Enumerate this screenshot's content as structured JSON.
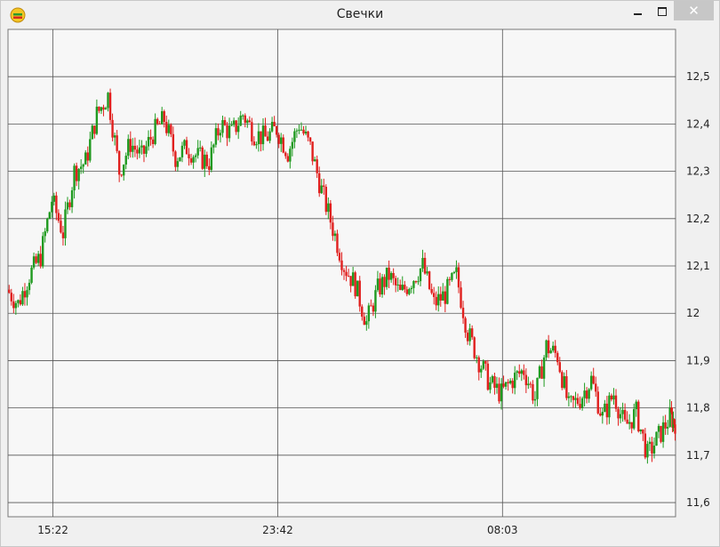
{
  "window": {
    "title": "Свечки",
    "app_icon": "chart-app-icon",
    "controls": {
      "minimize": "minimize-icon",
      "maximize": "maximize-icon",
      "close": "✕"
    }
  },
  "colors": {
    "up": "#1f9a1f",
    "down": "#e0201e",
    "grid": "#555555",
    "plot_bg": "#f7f7f7"
  },
  "chart_data": {
    "type": "candlestick",
    "title": "",
    "xlabel": "",
    "ylabel": "",
    "ylim": [
      11.57,
      12.6
    ],
    "y_ticks": [
      11.6,
      11.7,
      11.8,
      11.9,
      12,
      12.1,
      12.2,
      12.3,
      12.4,
      12.5
    ],
    "y_tick_labels": [
      "11,6",
      "11,7",
      "11,8",
      "11,9",
      "12",
      "12,1",
      "12,2",
      "12,3",
      "12,4",
      "12,5"
    ],
    "x_ticks": [
      15,
      115,
      215
    ],
    "x_tick_labels": [
      "15:22",
      "23:42",
      "08:03"
    ],
    "x_range": [
      -5,
      292
    ],
    "grid": true,
    "y_axis_side": "right",
    "series": [
      {
        "x": [
          -5,
          0,
          5,
          10,
          15,
          20,
          25,
          30,
          35,
          40,
          45,
          50,
          55,
          60,
          65,
          70,
          75,
          80,
          85,
          90,
          95,
          100,
          105,
          110,
          115,
          120,
          125,
          130,
          135,
          140,
          145,
          150,
          155,
          160,
          165,
          170,
          175,
          180,
          185,
          190,
          195,
          200,
          205,
          210,
          215,
          220,
          225,
          230,
          235,
          240,
          245,
          250,
          255,
          260,
          265,
          270,
          275,
          280,
          285,
          290,
          292
        ],
        "close": [
          12.05,
          12.02,
          12.08,
          12.12,
          12.24,
          12.17,
          12.3,
          12.32,
          12.42,
          12.46,
          12.3,
          12.36,
          12.33,
          12.38,
          12.41,
          12.33,
          12.35,
          12.33,
          12.32,
          12.4,
          12.38,
          12.42,
          12.38,
          12.37,
          12.39,
          12.34,
          12.4,
          12.35,
          12.26,
          12.18,
          12.1,
          12.06,
          11.98,
          12.05,
          12.08,
          12.04,
          12.07,
          12.1,
          12.02,
          12.04,
          12.08,
          11.96,
          11.9,
          11.85,
          11.83,
          11.86,
          11.88,
          11.82,
          11.93,
          11.91,
          11.8,
          11.82,
          11.86,
          11.78,
          11.83,
          11.76,
          11.79,
          11.7,
          11.74,
          11.78,
          11.77
        ]
      }
    ]
  }
}
